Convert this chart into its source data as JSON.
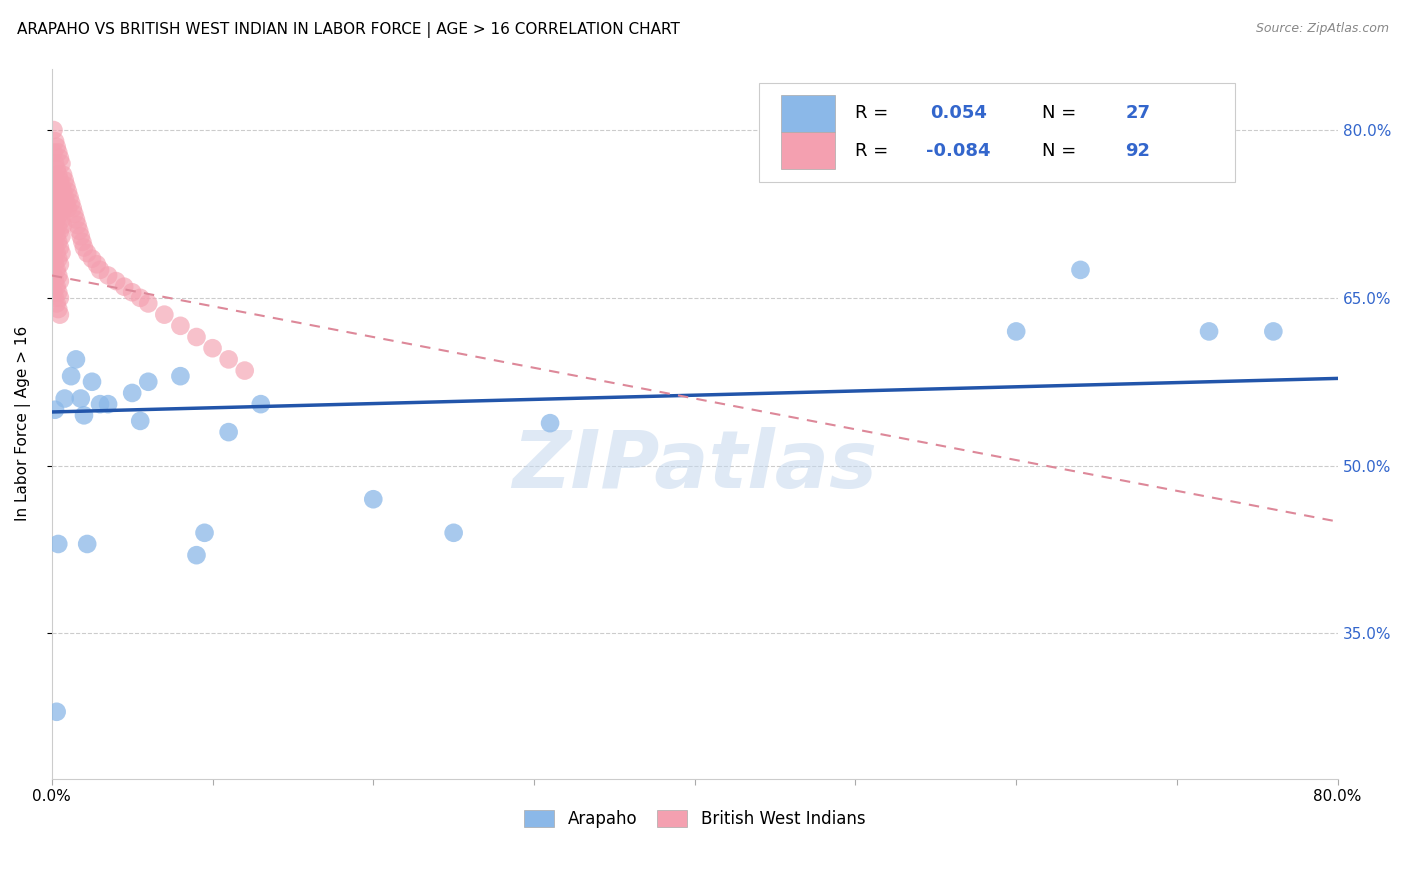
{
  "title": "ARAPAHO VS BRITISH WEST INDIAN IN LABOR FORCE | AGE > 16 CORRELATION CHART",
  "source": "Source: ZipAtlas.com",
  "ylabel": "In Labor Force | Age > 16",
  "xlim": [
    0.0,
    0.8
  ],
  "ylim": [
    0.22,
    0.855
  ],
  "ytick_positions": [
    0.35,
    0.5,
    0.65,
    0.8
  ],
  "ytick_labels": [
    "35.0%",
    "50.0%",
    "65.0%",
    "80.0%"
  ],
  "xtick_positions": [
    0.0,
    0.1,
    0.2,
    0.3,
    0.4,
    0.5,
    0.6,
    0.7,
    0.8
  ],
  "xtick_labels": [
    "0.0%",
    "",
    "",
    "",
    "",
    "",
    "",
    "",
    "80.0%"
  ],
  "blue_color": "#8BB8E8",
  "pink_color": "#F4A0B0",
  "line_blue": "#2255AA",
  "line_pink": "#DD8899",
  "legend_blue_r": "0.054",
  "legend_blue_n": "27",
  "legend_pink_r": "-0.084",
  "legend_pink_n": "92",
  "watermark": "ZIPatlas",
  "title_fontsize": 11,
  "axis_label_fontsize": 11,
  "tick_fontsize": 11,
  "blue_line_x": [
    0.0,
    0.8
  ],
  "blue_line_y": [
    0.548,
    0.578
  ],
  "pink_line_x": [
    0.0,
    0.8
  ],
  "pink_line_y": [
    0.67,
    0.45
  ],
  "blue_x": [
    0.002,
    0.003,
    0.004,
    0.008,
    0.012,
    0.015,
    0.018,
    0.02,
    0.022,
    0.025,
    0.03,
    0.035,
    0.05,
    0.055,
    0.06,
    0.08,
    0.09,
    0.095,
    0.11,
    0.13,
    0.2,
    0.25,
    0.31,
    0.6,
    0.64,
    0.72,
    0.76
  ],
  "blue_y": [
    0.55,
    0.28,
    0.43,
    0.56,
    0.58,
    0.595,
    0.56,
    0.545,
    0.43,
    0.575,
    0.555,
    0.555,
    0.565,
    0.54,
    0.575,
    0.58,
    0.42,
    0.44,
    0.53,
    0.555,
    0.47,
    0.44,
    0.538,
    0.62,
    0.675,
    0.62,
    0.62
  ],
  "pink_x": [
    0.001,
    0.001,
    0.001,
    0.001,
    0.001,
    0.001,
    0.001,
    0.001,
    0.001,
    0.001,
    0.002,
    0.002,
    0.002,
    0.002,
    0.002,
    0.002,
    0.002,
    0.002,
    0.002,
    0.002,
    0.003,
    0.003,
    0.003,
    0.003,
    0.003,
    0.003,
    0.003,
    0.003,
    0.003,
    0.003,
    0.004,
    0.004,
    0.004,
    0.004,
    0.004,
    0.004,
    0.004,
    0.004,
    0.004,
    0.004,
    0.005,
    0.005,
    0.005,
    0.005,
    0.005,
    0.005,
    0.005,
    0.005,
    0.005,
    0.005,
    0.006,
    0.006,
    0.006,
    0.006,
    0.006,
    0.006,
    0.007,
    0.007,
    0.007,
    0.007,
    0.008,
    0.008,
    0.009,
    0.009,
    0.01,
    0.01,
    0.011,
    0.012,
    0.013,
    0.014,
    0.015,
    0.016,
    0.017,
    0.018,
    0.019,
    0.02,
    0.022,
    0.025,
    0.028,
    0.03,
    0.035,
    0.04,
    0.045,
    0.05,
    0.055,
    0.06,
    0.07,
    0.08,
    0.09,
    0.1,
    0.11,
    0.12
  ],
  "pink_y": [
    0.8,
    0.78,
    0.76,
    0.745,
    0.73,
    0.715,
    0.7,
    0.685,
    0.67,
    0.655,
    0.79,
    0.77,
    0.755,
    0.74,
    0.725,
    0.71,
    0.695,
    0.68,
    0.665,
    0.65,
    0.785,
    0.765,
    0.75,
    0.735,
    0.72,
    0.705,
    0.69,
    0.675,
    0.66,
    0.645,
    0.78,
    0.76,
    0.745,
    0.73,
    0.715,
    0.7,
    0.685,
    0.67,
    0.655,
    0.64,
    0.775,
    0.755,
    0.74,
    0.725,
    0.71,
    0.695,
    0.68,
    0.665,
    0.65,
    0.635,
    0.77,
    0.75,
    0.735,
    0.72,
    0.705,
    0.69,
    0.76,
    0.745,
    0.73,
    0.715,
    0.755,
    0.74,
    0.75,
    0.735,
    0.745,
    0.73,
    0.74,
    0.735,
    0.73,
    0.725,
    0.72,
    0.715,
    0.71,
    0.705,
    0.7,
    0.695,
    0.69,
    0.685,
    0.68,
    0.675,
    0.67,
    0.665,
    0.66,
    0.655,
    0.65,
    0.645,
    0.635,
    0.625,
    0.615,
    0.605,
    0.595,
    0.585
  ]
}
